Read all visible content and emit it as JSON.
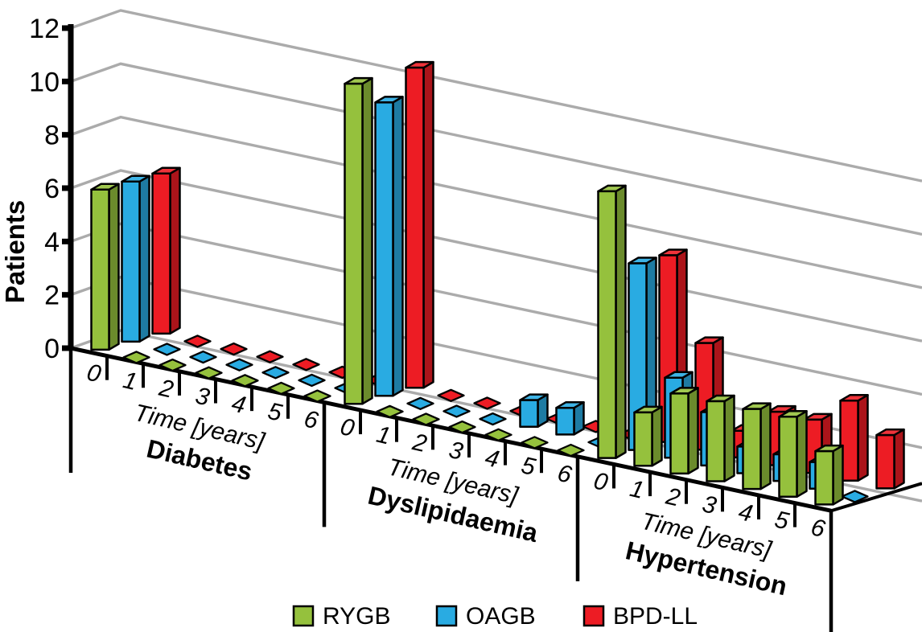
{
  "chart_data": {
    "type": "bar",
    "style": "3d-oblique-column",
    "title": "",
    "ylabel": "Patients",
    "ylim": [
      0,
      12
    ],
    "yticks": [
      0,
      2,
      4,
      6,
      8,
      10,
      12
    ],
    "group_axis_label": "Time [years]",
    "time_labels": [
      "0",
      "1",
      "2",
      "3",
      "4",
      "5",
      "6"
    ],
    "groups": [
      "Diabetes",
      "Dyslipidaemia",
      "Hypertension"
    ],
    "series": [
      {
        "name": "RYGB",
        "color": "#95C13D",
        "values": {
          "Diabetes": [
            6,
            0,
            0,
            0,
            0,
            0,
            0
          ],
          "Dyslipidaemia": [
            12,
            0,
            0,
            0,
            0,
            0,
            0
          ],
          "Hypertension": [
            10,
            2,
            3,
            3,
            3,
            3,
            2
          ]
        }
      },
      {
        "name": "OAGB",
        "color": "#29ABE2",
        "values": {
          "Diabetes": [
            6,
            0,
            0,
            0,
            0,
            0,
            0
          ],
          "Dyslipidaemia": [
            11,
            0,
            0,
            0,
            1,
            1,
            0
          ],
          "Hypertension": [
            7,
            3,
            2,
            1,
            1,
            1,
            0
          ]
        }
      },
      {
        "name": "BPD-LL",
        "color": "#ED1C24",
        "values": {
          "Diabetes": [
            6,
            0,
            0,
            0,
            0,
            0,
            0
          ],
          "Dyslipidaemia": [
            12,
            0,
            0,
            0,
            0,
            0,
            0
          ],
          "Hypertension": [
            7,
            4,
            1,
            2,
            2,
            3,
            2
          ]
        }
      }
    ],
    "legend_position": "bottom",
    "grid": true,
    "gridline_color": "#ABABAB",
    "axis_color": "#000000",
    "zero_marker": "flat-diamond"
  }
}
